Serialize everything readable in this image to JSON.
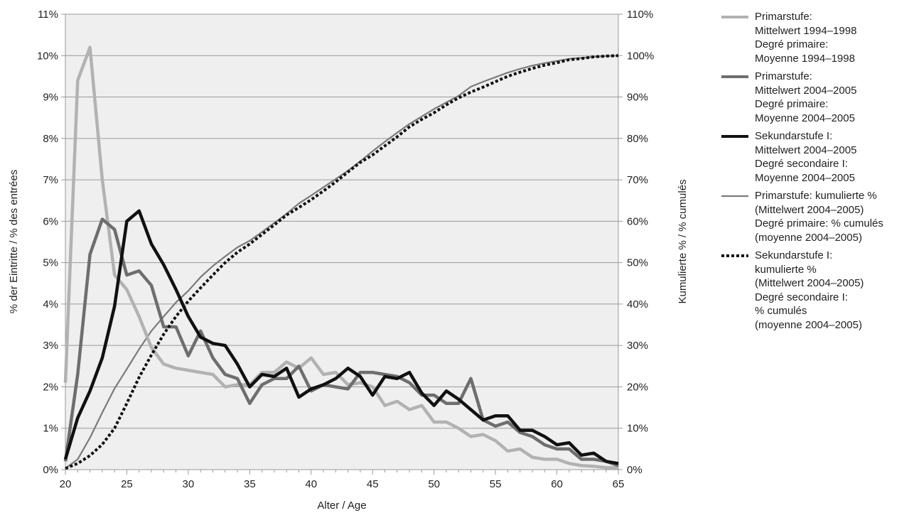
{
  "chart_data": {
    "type": "line",
    "xlabel": "Alter / Age",
    "ylabel_left": "% der Eintritte / % des entrées",
    "ylabel_right": "Kumulierte % / % cumulés",
    "xlim": [
      20,
      65
    ],
    "xticks": [
      20,
      25,
      30,
      35,
      40,
      45,
      50,
      55,
      60,
      65
    ],
    "ylim_left": [
      0,
      11
    ],
    "ylim_right": [
      0,
      110
    ],
    "yticks_left": [
      "0%",
      "1%",
      "2%",
      "3%",
      "4%",
      "5%",
      "6%",
      "7%",
      "8%",
      "9%",
      "10%",
      "11%"
    ],
    "yticks_right": [
      "0%",
      "10%",
      "20%",
      "30%",
      "40%",
      "50%",
      "60%",
      "70%",
      "80%",
      "90%",
      "100%",
      "110%"
    ],
    "grid": "horizontal",
    "background": "#efefef",
    "legend_position": "right",
    "x": [
      20,
      21,
      22,
      23,
      24,
      25,
      26,
      27,
      28,
      29,
      30,
      31,
      32,
      33,
      34,
      35,
      36,
      37,
      38,
      39,
      40,
      41,
      42,
      43,
      44,
      45,
      46,
      47,
      48,
      49,
      50,
      51,
      52,
      53,
      54,
      55,
      56,
      57,
      58,
      59,
      60,
      61,
      62,
      63,
      64,
      65
    ],
    "series": [
      {
        "name": "Primarstufe:\nMittelwert 1994–1998\nDegré primaire:\nMoyenne 1994–1998",
        "axis": "left",
        "color": "#b2b2b2",
        "width": 4.5,
        "dash": "",
        "values": [
          2.1,
          9.4,
          10.2,
          7.0,
          4.7,
          4.35,
          3.7,
          2.95,
          2.55,
          2.45,
          2.4,
          2.35,
          2.3,
          2.0,
          2.05,
          2.05,
          2.35,
          2.35,
          2.6,
          2.45,
          2.7,
          2.3,
          2.35,
          2.05,
          2.1,
          2.0,
          1.55,
          1.65,
          1.45,
          1.55,
          1.15,
          1.15,
          1.0,
          0.8,
          0.85,
          0.7,
          0.45,
          0.5,
          0.3,
          0.25,
          0.25,
          0.15,
          0.1,
          0.08,
          0.05,
          0.05
        ]
      },
      {
        "name": "Primarstufe:\nMittelwert 2004–2005\nDegré primaire:\nMoyenne 2004–2005",
        "axis": "left",
        "color": "#6e6e6e",
        "width": 4.5,
        "dash": "",
        "values": [
          0.2,
          2.3,
          5.2,
          6.05,
          5.8,
          4.7,
          4.8,
          4.45,
          3.45,
          3.45,
          2.75,
          3.35,
          2.7,
          2.3,
          2.2,
          1.6,
          2.05,
          2.2,
          2.2,
          2.5,
          1.9,
          2.05,
          2.0,
          1.95,
          2.35,
          2.35,
          2.3,
          2.25,
          2.1,
          1.8,
          1.8,
          1.6,
          1.6,
          2.2,
          1.2,
          1.05,
          1.15,
          0.9,
          0.8,
          0.6,
          0.5,
          0.5,
          0.25,
          0.25,
          0.2,
          0.1
        ]
      },
      {
        "name": "Sekundarstufe I:\nMittelwert 2004–2005\nDegré secondaire I:\nMoyenne 2004–2005",
        "axis": "left",
        "color": "#111111",
        "width": 4.5,
        "dash": "",
        "values": [
          0.25,
          1.25,
          1.9,
          2.7,
          3.95,
          6.0,
          6.25,
          5.45,
          4.95,
          4.35,
          3.7,
          3.2,
          3.05,
          3.0,
          2.55,
          2.0,
          2.3,
          2.25,
          2.45,
          1.75,
          1.95,
          2.05,
          2.2,
          2.45,
          2.25,
          1.8,
          2.25,
          2.2,
          2.35,
          1.85,
          1.55,
          1.9,
          1.7,
          1.45,
          1.2,
          1.3,
          1.3,
          0.95,
          0.95,
          0.8,
          0.6,
          0.65,
          0.35,
          0.4,
          0.2,
          0.15
        ]
      },
      {
        "name": "Primarstufe: kumulierte %\n(Mittelwert 2004–2005)\nDegré primaire: % cumulés\n(moyenne 2004–2005)",
        "axis": "right",
        "color": "#7a7a7a",
        "width": 2.2,
        "dash": "",
        "values": [
          0.3,
          2.5,
          7.7,
          13.8,
          19.6,
          24.3,
          29.1,
          33.5,
          37.0,
          40.4,
          43.2,
          46.5,
          49.2,
          51.5,
          53.7,
          55.3,
          57.4,
          59.6,
          61.8,
          64.3,
          66.2,
          68.2,
          70.2,
          72.2,
          74.5,
          76.9,
          79.2,
          81.4,
          83.5,
          85.3,
          87.1,
          88.7,
          90.3,
          92.5,
          93.7,
          94.8,
          95.9,
          96.8,
          97.6,
          98.2,
          98.7,
          99.2,
          99.45,
          99.7,
          99.9,
          100
        ]
      },
      {
        "name": "Sekundarstufe I:\nkumulierte %\n(Mittelwert 2004–2005)\nDegré secondaire I:\n% cumulés\n(moyenne 2004–2005)",
        "axis": "right",
        "color": "#111111",
        "width": 4,
        "dash": "4 3",
        "values": [
          0.3,
          1.5,
          3.4,
          6.1,
          10.0,
          16.0,
          22.3,
          27.7,
          32.7,
          37.0,
          40.7,
          43.9,
          47.0,
          50.0,
          52.5,
          54.5,
          56.8,
          59.1,
          61.5,
          63.3,
          65.2,
          67.3,
          69.5,
          71.9,
          74.2,
          76.0,
          78.2,
          80.4,
          82.8,
          84.6,
          86.2,
          88.1,
          89.8,
          91.2,
          92.4,
          93.7,
          95.0,
          96.0,
          96.9,
          97.7,
          98.3,
          99.0,
          99.3,
          99.7,
          99.9,
          100
        ]
      }
    ]
  }
}
